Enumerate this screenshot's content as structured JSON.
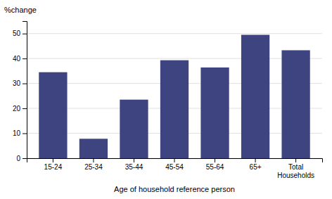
{
  "chart_data": {
    "type": "bar",
    "categories": [
      "15-24",
      "25-34",
      "35-44",
      "45-54",
      "55-64",
      "65+",
      "Total\nHouseholds"
    ],
    "values": [
      34.5,
      7.8,
      23.5,
      39.3,
      36.4,
      49.5,
      43.3
    ],
    "color": "#3d4480",
    "ylabel": "%change",
    "xlabel": "Age of household reference person",
    "ylim": [
      0,
      55
    ],
    "yticks": [
      0,
      10,
      20,
      30,
      40,
      50
    ],
    "grid": true
  }
}
